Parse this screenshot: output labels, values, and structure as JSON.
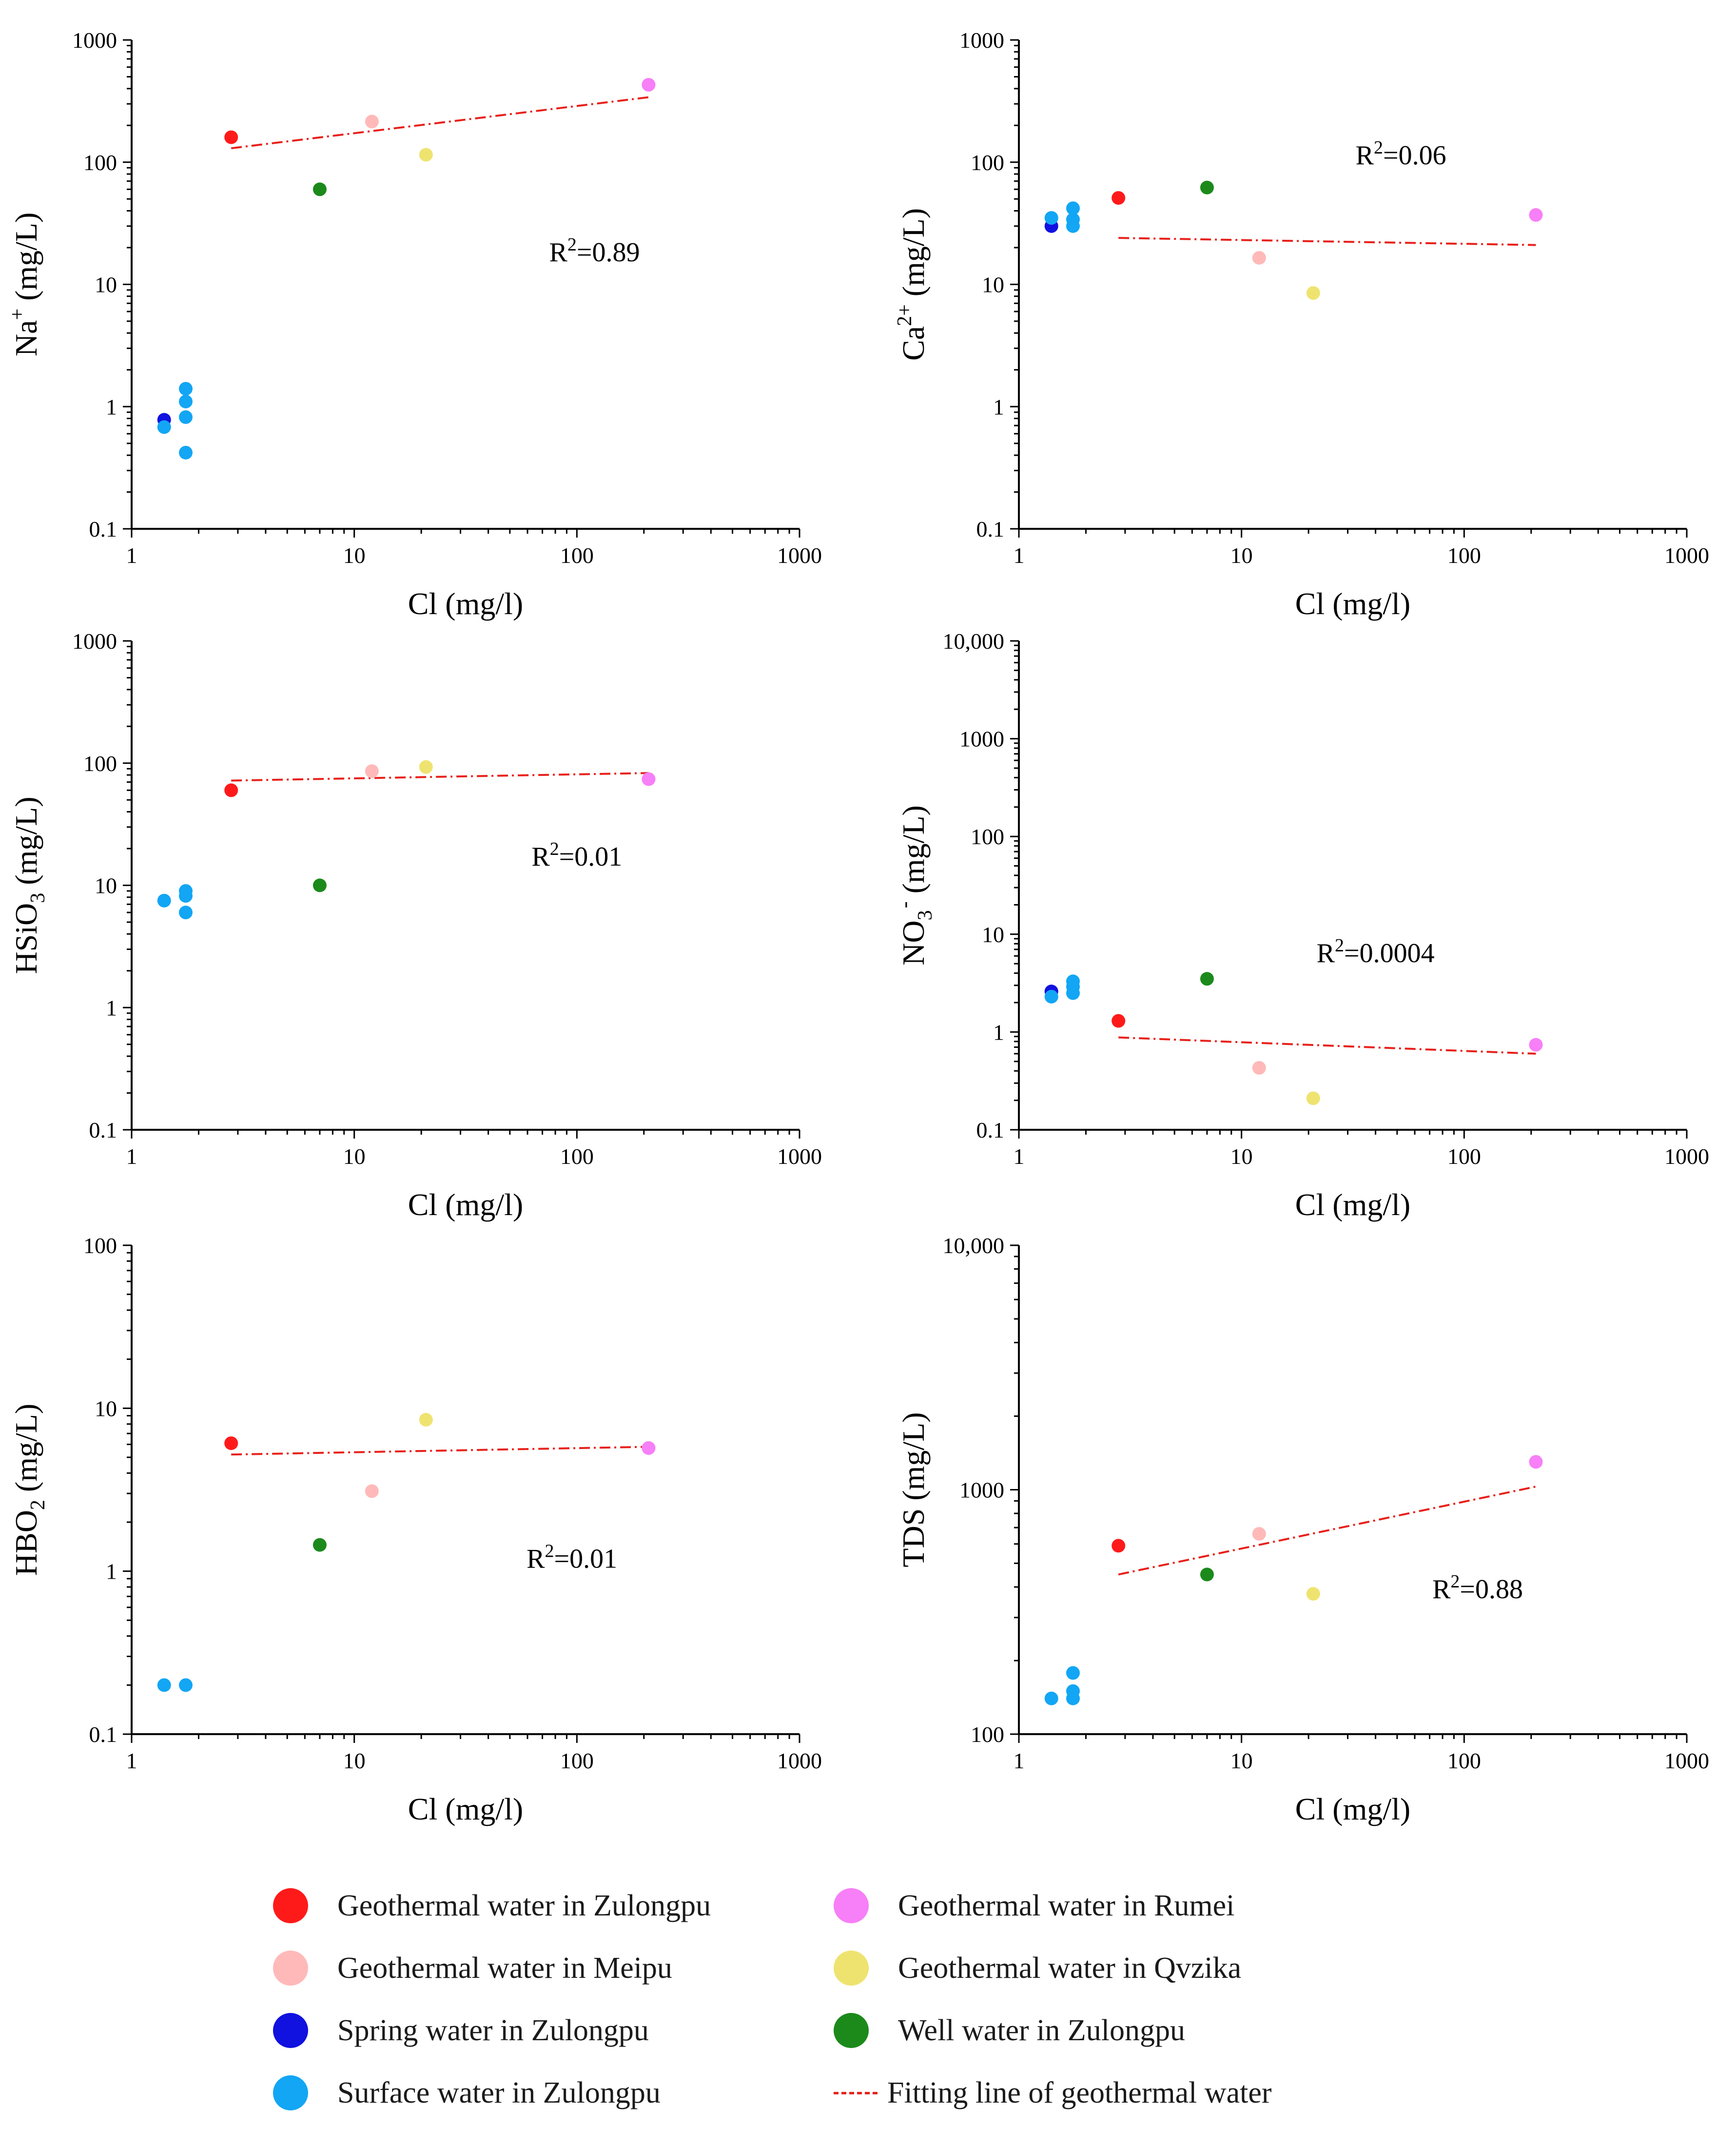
{
  "colors": {
    "zulongpu_geo": "#ff1a1a",
    "meipu_geo": "#ffb9b9",
    "qvzika_geo": "#efe370",
    "rumei_geo": "#f77ff7",
    "spring": "#1111e0",
    "surface": "#12a6f5",
    "well": "#1b8a1b",
    "fit": "#e8201a",
    "axis": "#000000"
  },
  "legend": {
    "items": [
      {
        "label": "Geothermal water in Zulongpu",
        "color_key": "zulongpu_geo",
        "kind": "dot"
      },
      {
        "label": "Geothermal water in Meipu",
        "color_key": "meipu_geo",
        "kind": "dot"
      },
      {
        "label": "Spring water in Zulongpu",
        "color_key": "spring",
        "kind": "dot"
      },
      {
        "label": "Surface water in Zulongpu",
        "color_key": "surface",
        "kind": "dot"
      },
      {
        "label": "Geothermal water in Rumei",
        "color_key": "rumei_geo",
        "kind": "dot"
      },
      {
        "label": "Geothermal water in Qvzika",
        "color_key": "qvzika_geo",
        "kind": "dot"
      },
      {
        "label": "Well water in Zulongpu",
        "color_key": "well",
        "kind": "dot"
      },
      {
        "label": "Fitting line of geothermal water",
        "color_key": "fit",
        "kind": "line"
      }
    ]
  },
  "chart_data": [
    {
      "type": "scatter",
      "id": "na",
      "xlabel": "Cl (mg/l)",
      "ylabel": {
        "base": "Na",
        "sup": "+",
        "sub": "",
        "unit": " (mg/L)"
      },
      "xscale": "log",
      "yscale": "log",
      "xlim": [
        1,
        1000
      ],
      "ylim": [
        0.1,
        1000
      ],
      "xticks": [
        {
          "v": 1,
          "label": "1"
        },
        {
          "v": 10,
          "label": "10"
        },
        {
          "v": 100,
          "label": "100"
        },
        {
          "v": 1000,
          "label": "1000"
        }
      ],
      "yticks": [
        {
          "v": 0.1,
          "label": "0.1"
        },
        {
          "v": 1,
          "label": "1"
        },
        {
          "v": 10,
          "label": "10"
        },
        {
          "v": 100,
          "label": "100"
        },
        {
          "v": 1000,
          "label": "1000"
        }
      ],
      "r2_label": "=0.89",
      "r2_at": [
        120,
        15.5
      ],
      "fit": [
        [
          2.8,
          130
        ],
        [
          210,
          340
        ]
      ],
      "series": [
        {
          "name": "Geothermal water in Zulongpu",
          "color_key": "zulongpu_geo",
          "points": [
            [
              2.8,
              160
            ]
          ]
        },
        {
          "name": "Geothermal water in Meipu",
          "color_key": "meipu_geo",
          "points": [
            [
              12,
              215
            ]
          ]
        },
        {
          "name": "Geothermal water in Qvzika",
          "color_key": "qvzika_geo",
          "points": [
            [
              21,
              115
            ]
          ]
        },
        {
          "name": "Geothermal water in Rumei",
          "color_key": "rumei_geo",
          "points": [
            [
              210,
              430
            ]
          ]
        },
        {
          "name": "Spring water in Zulongpu",
          "color_key": "spring",
          "points": [
            [
              1.4,
              0.78
            ]
          ]
        },
        {
          "name": "Surface water in Zulongpu",
          "color_key": "surface",
          "points": [
            [
              1.4,
              0.68
            ],
            [
              1.75,
              1.4
            ],
            [
              1.75,
              1.1
            ],
            [
              1.75,
              0.82
            ],
            [
              1.75,
              0.42
            ]
          ]
        },
        {
          "name": "Well water in Zulongpu",
          "color_key": "well",
          "points": [
            [
              7,
              60
            ]
          ]
        }
      ]
    },
    {
      "type": "scatter",
      "id": "ca",
      "xlabel": "Cl (mg/l)",
      "ylabel": {
        "base": "Ca",
        "sup": "2+",
        "sub": "",
        "unit": " (mg/L)"
      },
      "xscale": "log",
      "yscale": "log",
      "xlim": [
        1,
        1000
      ],
      "ylim": [
        0.1,
        1000
      ],
      "xticks": [
        {
          "v": 1,
          "label": "1"
        },
        {
          "v": 10,
          "label": "10"
        },
        {
          "v": 100,
          "label": "100"
        },
        {
          "v": 1000,
          "label": "1000"
        }
      ],
      "yticks": [
        {
          "v": 0.1,
          "label": "0.1"
        },
        {
          "v": 1,
          "label": "1"
        },
        {
          "v": 10,
          "label": "10"
        },
        {
          "v": 100,
          "label": "100"
        },
        {
          "v": 1000,
          "label": "1000"
        }
      ],
      "r2_label": "=0.06",
      "r2_at": [
        52,
        96
      ],
      "fit": [
        [
          2.8,
          24
        ],
        [
          210,
          21
        ]
      ],
      "series": [
        {
          "name": "Geothermal water in Zulongpu",
          "color_key": "zulongpu_geo",
          "points": [
            [
              2.8,
              51
            ]
          ]
        },
        {
          "name": "Geothermal water in Meipu",
          "color_key": "meipu_geo",
          "points": [
            [
              12,
              16.5
            ]
          ]
        },
        {
          "name": "Geothermal water in Qvzika",
          "color_key": "qvzika_geo",
          "points": [
            [
              21,
              8.5
            ]
          ]
        },
        {
          "name": "Geothermal water in Rumei",
          "color_key": "rumei_geo",
          "points": [
            [
              210,
              37
            ]
          ]
        },
        {
          "name": "Spring water in Zulongpu",
          "color_key": "spring",
          "points": [
            [
              1.4,
              30
            ]
          ]
        },
        {
          "name": "Surface water in Zulongpu",
          "color_key": "surface",
          "points": [
            [
              1.4,
              35
            ],
            [
              1.75,
              42
            ],
            [
              1.75,
              34
            ],
            [
              1.75,
              30
            ]
          ]
        },
        {
          "name": "Well water in Zulongpu",
          "color_key": "well",
          "points": [
            [
              7,
              62
            ]
          ]
        }
      ]
    },
    {
      "type": "scatter",
      "id": "hsio3",
      "xlabel": "Cl (mg/l)",
      "ylabel": {
        "base": "HSiO",
        "sup": "",
        "sub": "3",
        "unit": " (mg/L)"
      },
      "xscale": "log",
      "yscale": "log",
      "xlim": [
        1,
        1000
      ],
      "ylim": [
        0.1,
        1000
      ],
      "xticks": [
        {
          "v": 1,
          "label": "1"
        },
        {
          "v": 10,
          "label": "10"
        },
        {
          "v": 100,
          "label": "100"
        },
        {
          "v": 1000,
          "label": "1000"
        }
      ],
      "yticks": [
        {
          "v": 0.1,
          "label": "0.1"
        },
        {
          "v": 1,
          "label": "1"
        },
        {
          "v": 10,
          "label": "10"
        },
        {
          "v": 100,
          "label": "100"
        },
        {
          "v": 1000,
          "label": "1000"
        }
      ],
      "r2_label": "=0.01",
      "r2_at": [
        100,
        14.5
      ],
      "fit": [
        [
          2.8,
          72
        ],
        [
          210,
          83
        ]
      ],
      "series": [
        {
          "name": "Geothermal water in Zulongpu",
          "color_key": "zulongpu_geo",
          "points": [
            [
              2.8,
              60
            ]
          ]
        },
        {
          "name": "Geothermal water in Meipu",
          "color_key": "meipu_geo",
          "points": [
            [
              12,
              86
            ]
          ]
        },
        {
          "name": "Geothermal water in Qvzika",
          "color_key": "qvzika_geo",
          "points": [
            [
              21,
              93
            ]
          ]
        },
        {
          "name": "Geothermal water in Rumei",
          "color_key": "rumei_geo",
          "points": [
            [
              210,
              74
            ]
          ]
        },
        {
          "name": "Spring water in Zulongpu",
          "color_key": "spring",
          "points": []
        },
        {
          "name": "Surface water in Zulongpu",
          "color_key": "surface",
          "points": [
            [
              1.4,
              7.5
            ],
            [
              1.75,
              9
            ],
            [
              1.75,
              8.2
            ],
            [
              1.75,
              6
            ]
          ]
        },
        {
          "name": "Well water in Zulongpu",
          "color_key": "well",
          "points": [
            [
              7,
              10
            ]
          ]
        }
      ]
    },
    {
      "type": "scatter",
      "id": "no3",
      "xlabel": "Cl (mg/l)",
      "ylabel": {
        "base": "NO",
        "sup": "-",
        "sub": "3",
        "unit": " (mg/L)"
      },
      "xscale": "log",
      "yscale": "log",
      "xlim": [
        1,
        1000
      ],
      "ylim": [
        0.1,
        10000
      ],
      "xticks": [
        {
          "v": 1,
          "label": "1"
        },
        {
          "v": 10,
          "label": "10"
        },
        {
          "v": 100,
          "label": "100"
        },
        {
          "v": 1000,
          "label": "1000"
        }
      ],
      "yticks": [
        {
          "v": 0.1,
          "label": "0.1"
        },
        {
          "v": 1,
          "label": "1"
        },
        {
          "v": 10,
          "label": "10"
        },
        {
          "v": 100,
          "label": "100"
        },
        {
          "v": 1000,
          "label": "1000"
        },
        {
          "v": 10000,
          "label": "10,000"
        }
      ],
      "r2_label": "=0.0004",
      "r2_at": [
        40,
        5.2
      ],
      "fit": [
        [
          2.8,
          0.88
        ],
        [
          210,
          0.6
        ]
      ],
      "series": [
        {
          "name": "Geothermal water in Zulongpu",
          "color_key": "zulongpu_geo",
          "points": [
            [
              2.8,
              1.3
            ]
          ]
        },
        {
          "name": "Geothermal water in Meipu",
          "color_key": "meipu_geo",
          "points": [
            [
              12,
              0.43
            ]
          ]
        },
        {
          "name": "Geothermal water in Qvzika",
          "color_key": "qvzika_geo",
          "points": [
            [
              21,
              0.21
            ]
          ]
        },
        {
          "name": "Geothermal water in Rumei",
          "color_key": "rumei_geo",
          "points": [
            [
              210,
              0.74
            ]
          ]
        },
        {
          "name": "Spring water in Zulongpu",
          "color_key": "spring",
          "points": [
            [
              1.4,
              2.6
            ]
          ]
        },
        {
          "name": "Surface water in Zulongpu",
          "color_key": "surface",
          "points": [
            [
              1.4,
              2.3
            ],
            [
              1.75,
              3.3
            ],
            [
              1.75,
              2.9
            ],
            [
              1.75,
              2.5
            ]
          ]
        },
        {
          "name": "Well water in Zulongpu",
          "color_key": "well",
          "points": [
            [
              7,
              3.5
            ]
          ]
        }
      ]
    },
    {
      "type": "scatter",
      "id": "hbo2",
      "xlabel": "Cl (mg/l)",
      "ylabel": {
        "base": "HBO",
        "sup": "",
        "sub": "2",
        "unit": " (mg/L)"
      },
      "xscale": "log",
      "yscale": "log",
      "xlim": [
        1,
        1000
      ],
      "ylim": [
        0.1,
        100
      ],
      "xticks": [
        {
          "v": 1,
          "label": "1"
        },
        {
          "v": 10,
          "label": "10"
        },
        {
          "v": 100,
          "label": "100"
        },
        {
          "v": 1000,
          "label": "1000"
        }
      ],
      "yticks": [
        {
          "v": 0.1,
          "label": "0.1"
        },
        {
          "v": 1,
          "label": "1"
        },
        {
          "v": 10,
          "label": "10"
        },
        {
          "v": 100,
          "label": "100"
        }
      ],
      "r2_label": "=0.01",
      "r2_at": [
        95,
        1.05
      ],
      "fit": [
        [
          2.8,
          5.2
        ],
        [
          210,
          5.8
        ]
      ],
      "series": [
        {
          "name": "Geothermal water in Zulongpu",
          "color_key": "zulongpu_geo",
          "points": [
            [
              2.8,
              6.1
            ]
          ]
        },
        {
          "name": "Geothermal water in Meipu",
          "color_key": "meipu_geo",
          "points": [
            [
              12,
              3.1
            ]
          ]
        },
        {
          "name": "Geothermal water in Qvzika",
          "color_key": "qvzika_geo",
          "points": [
            [
              21,
              8.5
            ]
          ]
        },
        {
          "name": "Geothermal water in Rumei",
          "color_key": "rumei_geo",
          "points": [
            [
              210,
              5.7
            ]
          ]
        },
        {
          "name": "Spring water in Zulongpu",
          "color_key": "spring",
          "points": []
        },
        {
          "name": "Surface water in Zulongpu",
          "color_key": "surface",
          "points": [
            [
              1.4,
              0.2
            ],
            [
              1.75,
              0.2
            ]
          ]
        },
        {
          "name": "Well water in Zulongpu",
          "color_key": "well",
          "points": [
            [
              7,
              1.45
            ]
          ]
        }
      ]
    },
    {
      "type": "scatter",
      "id": "tds",
      "xlabel": "Cl (mg/l)",
      "ylabel": {
        "base": "TDS",
        "sup": "",
        "sub": "",
        "unit": " (mg/L)"
      },
      "xscale": "log",
      "yscale": "log",
      "xlim": [
        1,
        1000
      ],
      "ylim": [
        100,
        10000
      ],
      "xticks": [
        {
          "v": 1,
          "label": "1"
        },
        {
          "v": 10,
          "label": "10"
        },
        {
          "v": 100,
          "label": "100"
        },
        {
          "v": 1000,
          "label": "1000"
        }
      ],
      "yticks": [
        {
          "v": 100,
          "label": "100"
        },
        {
          "v": 1000,
          "label": "1000"
        },
        {
          "v": 10000,
          "label": "10,000"
        }
      ],
      "r2_label": "=0.88",
      "r2_at": [
        115,
        360
      ],
      "fit": [
        [
          2.8,
          450
        ],
        [
          210,
          1030
        ]
      ],
      "series": [
        {
          "name": "Geothermal water in Zulongpu",
          "color_key": "zulongpu_geo",
          "points": [
            [
              2.8,
              590
            ]
          ]
        },
        {
          "name": "Geothermal water in Meipu",
          "color_key": "meipu_geo",
          "points": [
            [
              12,
              660
            ]
          ]
        },
        {
          "name": "Geothermal water in Qvzika",
          "color_key": "qvzika_geo",
          "points": [
            [
              21,
              375
            ]
          ]
        },
        {
          "name": "Geothermal water in Rumei",
          "color_key": "rumei_geo",
          "points": [
            [
              210,
              1300
            ]
          ]
        },
        {
          "name": "Spring water in Zulongpu",
          "color_key": "spring",
          "points": []
        },
        {
          "name": "Surface water in Zulongpu",
          "color_key": "surface",
          "points": [
            [
              1.4,
              140
            ],
            [
              1.75,
              178
            ],
            [
              1.75,
              150
            ],
            [
              1.75,
              140
            ]
          ]
        },
        {
          "name": "Well water in Zulongpu",
          "color_key": "well",
          "points": [
            [
              7,
              450
            ]
          ]
        }
      ]
    }
  ]
}
